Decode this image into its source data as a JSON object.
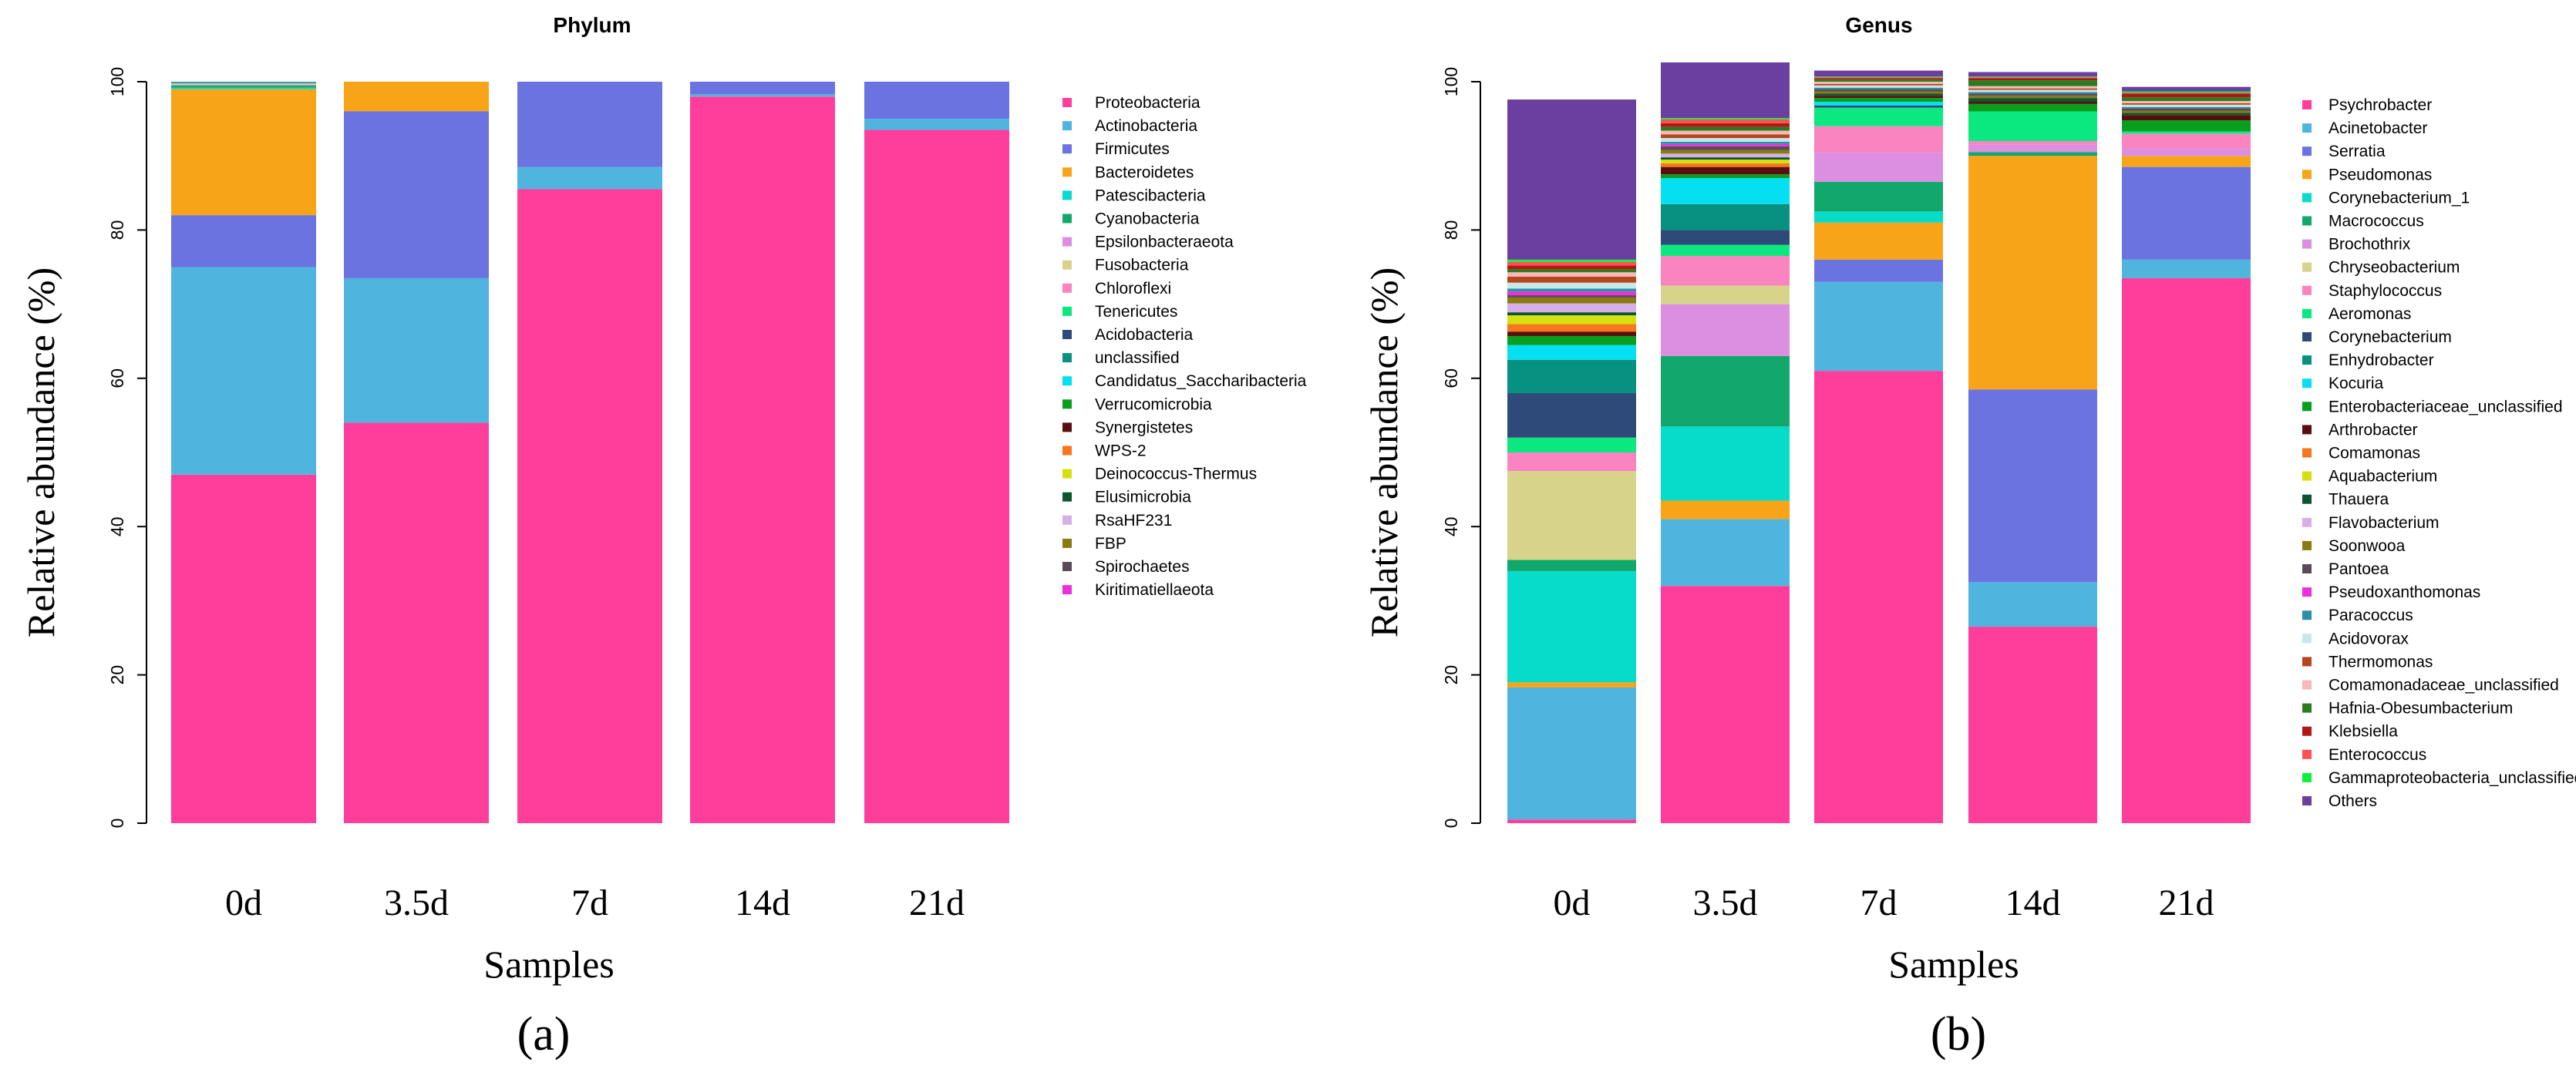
{
  "chart_data": [
    {
      "type": "bar",
      "stacked": true,
      "title": "Phylum",
      "xlabel": "Samples",
      "ylabel": "Relative abundance (%)",
      "ylim": [
        0,
        100
      ],
      "yticks": [
        "0",
        "20",
        "40",
        "60",
        "80",
        "100"
      ],
      "panel_label": "(a)",
      "legend_position": "right",
      "categories": [
        "0d",
        "3.5d",
        "7d",
        "14d",
        "21d"
      ],
      "series": [
        {
          "name": "Proteobacteria",
          "color": "#ff3e9c",
          "values": [
            47,
            54,
            85.5,
            98,
            93.5
          ]
        },
        {
          "name": "Actinobacteria",
          "color": "#4fb5df",
          "values": [
            28,
            19.5,
            3,
            0.3,
            1.5
          ]
        },
        {
          "name": "Firmicutes",
          "color": "#6b73e0",
          "values": [
            7,
            22.5,
            11.5,
            1.7,
            5
          ]
        },
        {
          "name": "Bacteroidetes",
          "color": "#f7a418",
          "values": [
            17,
            4,
            0,
            0,
            0
          ]
        },
        {
          "name": "Patescibacteria",
          "color": "#07dbc9",
          "values": [
            0.2,
            0,
            0,
            0,
            0
          ]
        },
        {
          "name": "Cyanobacteria",
          "color": "#12a86b",
          "values": [
            0.3,
            0,
            0,
            0,
            0
          ]
        },
        {
          "name": "Epsilonbacteraeota",
          "color": "#dc8fe0",
          "values": [
            0.1,
            0,
            0,
            0,
            0
          ]
        },
        {
          "name": "Fusobacteria",
          "color": "#d8d38a",
          "values": [
            0.1,
            0,
            0,
            0,
            0
          ]
        },
        {
          "name": "Chloroflexi",
          "color": "#f984bf",
          "values": [
            0.1,
            0,
            0,
            0,
            0
          ]
        },
        {
          "name": "Tenericutes",
          "color": "#0ae87f",
          "values": [
            0.05,
            0,
            0,
            0,
            0
          ]
        },
        {
          "name": "Acidobacteria",
          "color": "#2e4a78",
          "values": [
            0.05,
            0,
            0,
            0,
            0
          ]
        },
        {
          "name": "unclassified",
          "color": "#079180",
          "values": [
            0.05,
            0,
            0,
            0,
            0
          ]
        },
        {
          "name": "Candidatus_Saccharibacteria",
          "color": "#05dff2",
          "values": [
            0.05,
            0,
            0,
            0,
            0
          ]
        },
        {
          "name": "Verrucomicrobia",
          "color": "#0a9e1e",
          "values": [
            0,
            0,
            0,
            0,
            0
          ]
        },
        {
          "name": "Synergistetes",
          "color": "#5a0f0f",
          "values": [
            0,
            0,
            0,
            0,
            0
          ]
        },
        {
          "name": "WPS-2",
          "color": "#f7761e",
          "values": [
            0,
            0,
            0,
            0,
            0
          ]
        },
        {
          "name": "Deinococcus-Thermus",
          "color": "#d4e010",
          "values": [
            0,
            0,
            0,
            0,
            0
          ]
        },
        {
          "name": "Elusimicrobia",
          "color": "#0b5530",
          "values": [
            0,
            0,
            0,
            0,
            0
          ]
        },
        {
          "name": "RsaHF231",
          "color": "#d6aee8",
          "values": [
            0,
            0,
            0,
            0,
            0
          ]
        },
        {
          "name": "FBP",
          "color": "#8a7a0f",
          "values": [
            0,
            0,
            0,
            0,
            0
          ]
        },
        {
          "name": "Spirochaetes",
          "color": "#5a4a5a",
          "values": [
            0,
            0,
            0,
            0,
            0
          ]
        },
        {
          "name": "Kiritimatiellaeota",
          "color": "#ec2edb",
          "values": [
            0,
            0,
            0,
            0,
            0
          ]
        }
      ]
    },
    {
      "type": "bar",
      "stacked": true,
      "title": "Genus",
      "xlabel": "Samples",
      "ylabel": "Relative abundance (%)",
      "ylim": [
        0,
        100
      ],
      "yticks": [
        "0",
        "20",
        "40",
        "60",
        "80",
        "100"
      ],
      "panel_label": "(b)",
      "legend_position": "right",
      "categories": [
        "0d",
        "3.5d",
        "7d",
        "14d",
        "21d"
      ],
      "series": [
        {
          "name": "Psychrobacter",
          "color": "#ff3e9c",
          "values": [
            0.5,
            32,
            61,
            26.5,
            73.5
          ]
        },
        {
          "name": "Acinetobacter",
          "color": "#4fb5df",
          "values": [
            17.8,
            9,
            12,
            6,
            2.5
          ]
        },
        {
          "name": "Serratia",
          "color": "#6b73e0",
          "values": [
            0,
            0,
            3,
            26,
            12.5
          ]
        },
        {
          "name": "Pseudomonas",
          "color": "#f7a418",
          "values": [
            0.7,
            2.5,
            5,
            31.5,
            1.5
          ]
        },
        {
          "name": "Corynebacterium_1",
          "color": "#07dbc9",
          "values": [
            15,
            10,
            1.5,
            0,
            0
          ]
        },
        {
          "name": "Macrococcus",
          "color": "#12a86b",
          "values": [
            1.5,
            9.5,
            4,
            0.5,
            0
          ]
        },
        {
          "name": "Brochothrix",
          "color": "#dc8fe0",
          "values": [
            0,
            7,
            4,
            1,
            1
          ]
        },
        {
          "name": "Chryseobacterium",
          "color": "#d8d38a",
          "values": [
            12,
            2.5,
            0,
            0,
            0
          ]
        },
        {
          "name": "Staphylococcus",
          "color": "#f984bf",
          "values": [
            2.5,
            4,
            3.5,
            0.5,
            2
          ]
        },
        {
          "name": "Aeromonas",
          "color": "#0ae87f",
          "values": [
            2,
            1.5,
            2.5,
            4,
            0.3
          ]
        },
        {
          "name": "Corynebacterium",
          "color": "#2e4a78",
          "values": [
            6,
            2,
            0.3,
            0,
            0
          ]
        },
        {
          "name": "Enhydrobacter",
          "color": "#079180",
          "values": [
            4.5,
            3.5,
            0,
            0,
            0
          ]
        },
        {
          "name": "Kocuria",
          "color": "#05dff2",
          "values": [
            2,
            3.5,
            0.5,
            0,
            0
          ]
        },
        {
          "name": "Enterobacteriaceae_unclassified",
          "color": "#0a9e1e",
          "values": [
            1.2,
            0.5,
            0.5,
            1,
            1.5
          ]
        },
        {
          "name": "Arthrobacter",
          "color": "#5a0f0f",
          "values": [
            0.6,
            1,
            0.3,
            0.3,
            0.7
          ]
        },
        {
          "name": "Comamonas",
          "color": "#f7761e",
          "values": [
            1,
            0.5,
            0,
            0,
            0
          ]
        },
        {
          "name": "Aquabacterium",
          "color": "#d4e010",
          "values": [
            1.2,
            0.5,
            0,
            0,
            0
          ]
        },
        {
          "name": "Thauera",
          "color": "#0b5530",
          "values": [
            0.4,
            0.3,
            0.3,
            0.5,
            0.3
          ]
        },
        {
          "name": "Flavobacterium",
          "color": "#d6aee8",
          "values": [
            1.2,
            0.5,
            0,
            0,
            0
          ]
        },
        {
          "name": "Soonwooa",
          "color": "#8a7a0f",
          "values": [
            0.8,
            0.5,
            0.3,
            0.3,
            0.3
          ]
        },
        {
          "name": "Pantoea",
          "color": "#5a4a5a",
          "values": [
            0.3,
            0.5,
            0.3,
            0.3,
            0.3
          ]
        },
        {
          "name": "Pseudoxanthomonas",
          "color": "#ec2edb",
          "values": [
            0.5,
            0.3,
            0,
            0,
            0
          ]
        },
        {
          "name": "Paracoccus",
          "color": "#2b8fa8",
          "values": [
            0.4,
            0.3,
            0.2,
            0.2,
            0.2
          ]
        },
        {
          "name": "Acidovorax",
          "color": "#c8e8e8",
          "values": [
            0.8,
            0.5,
            0.3,
            0.3,
            0.3
          ]
        },
        {
          "name": "Thermomonas",
          "color": "#b8461e",
          "values": [
            0.8,
            0.5,
            0.2,
            0.2,
            0.2
          ]
        },
        {
          "name": "Comamonadaceae_unclassified",
          "color": "#f8b8b8",
          "values": [
            0.6,
            0.5,
            0.3,
            0.3,
            0.3
          ]
        },
        {
          "name": "Hafnia-Obesumbacterium",
          "color": "#2a7d1e",
          "values": [
            0.4,
            0.5,
            0.3,
            0.8,
            0.5
          ]
        },
        {
          "name": "Klebsiella",
          "color": "#b01818",
          "values": [
            0.5,
            0.5,
            0.2,
            0.3,
            0.5
          ]
        },
        {
          "name": "Enterococcus",
          "color": "#ff5050",
          "values": [
            0.5,
            0.5,
            0.1,
            0.1,
            0.1
          ]
        },
        {
          "name": "Gammaproteobacteria_unclassified",
          "color": "#10ee40",
          "values": [
            0.3,
            0.2,
            0.1,
            0.1,
            0.2
          ]
        },
        {
          "name": "Others",
          "color": "#6a3fa0",
          "values": [
            21.6,
            7.5,
            0.8,
            0.6,
            0.6
          ]
        }
      ]
    }
  ]
}
